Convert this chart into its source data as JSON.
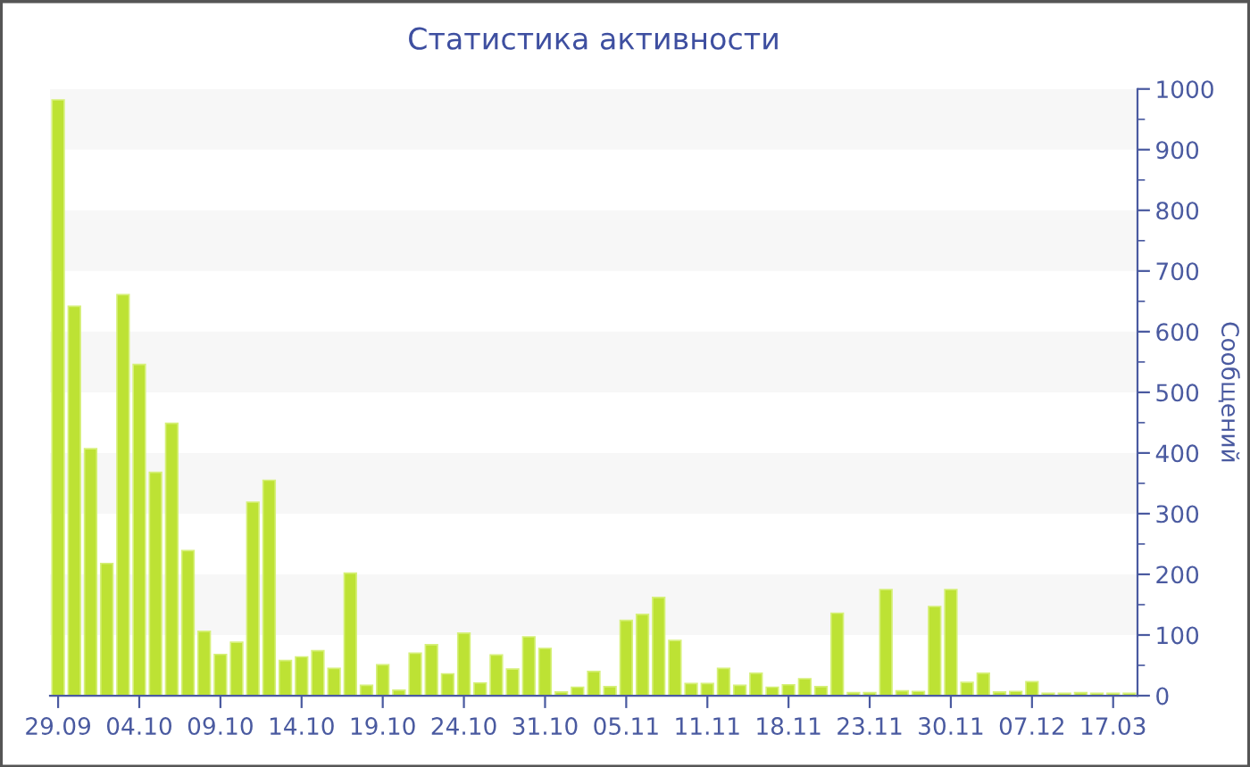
{
  "chart_data": {
    "type": "bar",
    "title": "Статистика активности",
    "ylabel": "Сообщений",
    "categories": [
      "29.09",
      null,
      null,
      null,
      null,
      "04.10",
      null,
      null,
      null,
      null,
      "09.10",
      null,
      null,
      null,
      null,
      "14.10",
      null,
      null,
      null,
      null,
      "19.10",
      null,
      null,
      null,
      null,
      "24.10",
      null,
      null,
      null,
      null,
      "31.10",
      null,
      null,
      null,
      null,
      "05.11",
      null,
      null,
      null,
      null,
      "11.11",
      null,
      null,
      null,
      null,
      "18.11",
      null,
      null,
      null,
      null,
      "23.11",
      null,
      null,
      null,
      null,
      "30.11",
      null,
      null,
      null,
      null,
      "07.12",
      null,
      null,
      null,
      null,
      "17.03",
      null
    ],
    "values": [
      982,
      642,
      407,
      218,
      661,
      546,
      368,
      449,
      239,
      106,
      68,
      88,
      319,
      355,
      58,
      64,
      74,
      45,
      202,
      17,
      51,
      9,
      70,
      84,
      36,
      103,
      21,
      67,
      44,
      97,
      78,
      6,
      14,
      40,
      15,
      124,
      134,
      162,
      91,
      20,
      20,
      45,
      17,
      37,
      14,
      18,
      28,
      15,
      136,
      5,
      5,
      175,
      8,
      7,
      147,
      175,
      22,
      37,
      6,
      7,
      23,
      4,
      4,
      5,
      4,
      4,
      4
    ],
    "color": "#bde234",
    "ylim": [
      0,
      1000
    ],
    "yticks": [
      0,
      100,
      200,
      300,
      400,
      500,
      600,
      700,
      800,
      900,
      1000
    ],
    "bands": [
      {
        "axis": "y",
        "from": 100,
        "to": 200,
        "color": "#f7f7f7"
      },
      {
        "axis": "y",
        "from": 300,
        "to": 400,
        "color": "#f7f7f7"
      },
      {
        "axis": "y",
        "from": 500,
        "to": 600,
        "color": "#f7f7f7"
      },
      {
        "axis": "y",
        "from": 700,
        "to": 800,
        "color": "#f7f7f7"
      },
      {
        "axis": "y",
        "from": 900,
        "to": 1000,
        "color": "#f7f7f7"
      }
    ],
    "grid": false
  }
}
